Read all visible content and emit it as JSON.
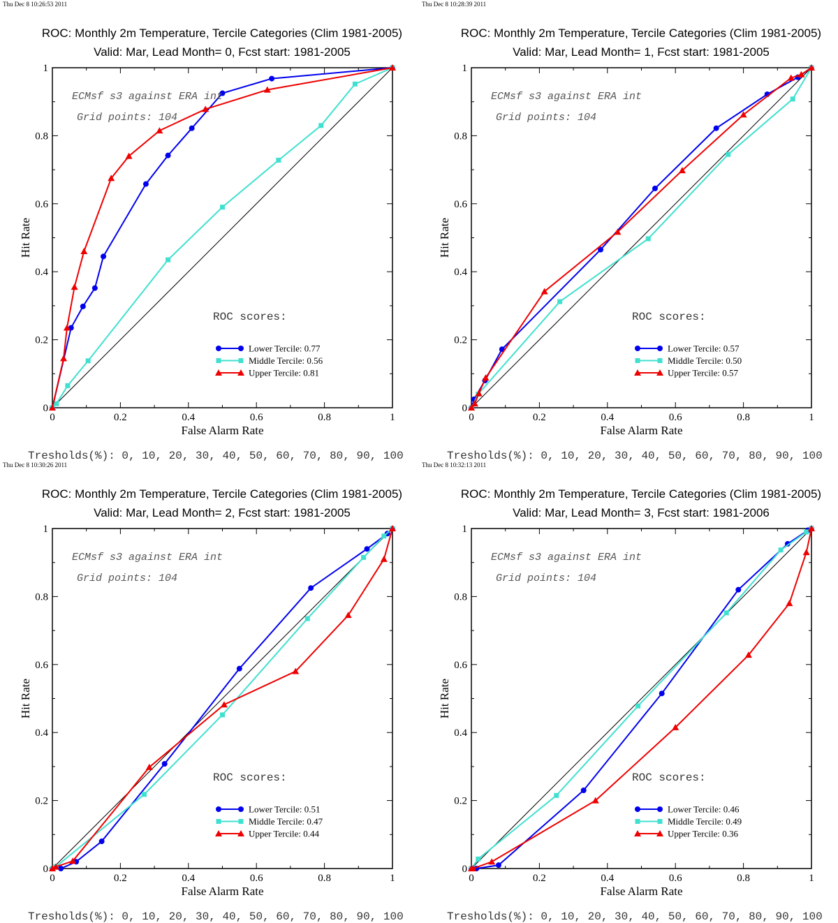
{
  "colors": {
    "lower": "#0000ee",
    "middle": "#40e0d0",
    "upper": "#ee0000",
    "diagonal": "#000000",
    "background": "#ffffff"
  },
  "chart_data": [
    {
      "type": "line",
      "timestamp": "Thu Dec  8 10:26:53 2011",
      "title": "ROC: Monthly 2m Temperature, Tercile Categories (Clim 1981-2005)",
      "subtitle": "Valid: Mar, Lead Month= 0, Fcst start: 1981-2005",
      "xlabel": "False Alarm Rate",
      "ylabel": "Hit Rate",
      "xlim": [
        0,
        1
      ],
      "ylim": [
        0,
        1
      ],
      "x_ticks": [
        "0",
        "0.2",
        "0.4",
        "0.6",
        "0.8",
        "1"
      ],
      "y_ticks": [
        "0",
        "0.2",
        "0.4",
        "0.6",
        "0.8",
        "1"
      ],
      "annotation_line1": "ECMsf s3 against ERA int",
      "annotation_line2": "Grid points:  104",
      "scores_heading": "ROC scores:",
      "thresholds_text": "Tresholds(%): 0, 10, 20, 30, 40, 50, 60, 70, 80, 90, 100",
      "legend_position": "lower-right",
      "series": [
        {
          "name": "Lower Tercile: 0.77",
          "marker": "circle",
          "x": [
            0,
            0.055,
            0.09,
            0.125,
            0.15,
            0.275,
            0.34,
            0.41,
            0.5,
            0.645,
            1
          ],
          "y": [
            0,
            0.235,
            0.298,
            0.352,
            0.445,
            0.658,
            0.742,
            0.822,
            0.925,
            0.968,
            1
          ]
        },
        {
          "name": "Middle Tercile: 0.56",
          "marker": "square",
          "x": [
            0,
            0.012,
            0.045,
            0.105,
            0.34,
            0.5,
            0.665,
            0.79,
            0.89,
            1
          ],
          "y": [
            0,
            0.012,
            0.065,
            0.138,
            0.435,
            0.59,
            0.728,
            0.83,
            0.952,
            1
          ]
        },
        {
          "name": "Upper Tercile: 0.81",
          "marker": "triangle",
          "x": [
            0,
            0.033,
            0.043,
            0.065,
            0.093,
            0.173,
            0.225,
            0.315,
            0.45,
            0.632,
            1
          ],
          "y": [
            0,
            0.145,
            0.235,
            0.355,
            0.46,
            0.675,
            0.74,
            0.815,
            0.878,
            0.935,
            1
          ]
        }
      ]
    },
    {
      "type": "line",
      "timestamp": "Thu Dec  8 10:28:39 2011",
      "title": "ROC: Monthly 2m Temperature, Tercile Categories (Clim 1981-2005)",
      "subtitle": "Valid: Mar, Lead Month= 1, Fcst start: 1981-2005",
      "xlabel": "False Alarm Rate",
      "ylabel": "Hit Rate",
      "xlim": [
        0,
        1
      ],
      "ylim": [
        0,
        1
      ],
      "x_ticks": [
        "0",
        "0.2",
        "0.4",
        "0.6",
        "0.8",
        "1"
      ],
      "y_ticks": [
        "0",
        "0.2",
        "0.4",
        "0.6",
        "0.8",
        "1"
      ],
      "annotation_line1": "ECMsf s3 against ERA int",
      "annotation_line2": "Grid points:  104",
      "scores_heading": "ROC scores:",
      "thresholds_text": "Tresholds(%): 0, 10, 20, 30, 40, 50, 60, 70, 80, 90, 100",
      "legend_position": "lower-right",
      "series": [
        {
          "name": "Lower Tercile: 0.57",
          "marker": "circle",
          "x": [
            0,
            0.008,
            0.04,
            0.09,
            0.38,
            0.54,
            0.72,
            0.87,
            0.96,
            1
          ],
          "y": [
            0,
            0.025,
            0.08,
            0.172,
            0.465,
            0.645,
            0.822,
            0.922,
            0.972,
            1
          ]
        },
        {
          "name": "Middle Tercile: 0.50",
          "marker": "square",
          "x": [
            0,
            0.02,
            0.26,
            0.52,
            0.755,
            0.945,
            1
          ],
          "y": [
            0,
            0.04,
            0.312,
            0.497,
            0.745,
            0.908,
            1
          ]
        },
        {
          "name": "Upper Tercile: 0.57",
          "marker": "triangle",
          "x": [
            0,
            0.01,
            0.022,
            0.042,
            0.215,
            0.43,
            0.62,
            0.8,
            0.94,
            0.97,
            1
          ],
          "y": [
            0,
            0.012,
            0.042,
            0.088,
            0.342,
            0.517,
            0.698,
            0.862,
            0.97,
            0.98,
            1
          ]
        }
      ]
    },
    {
      "type": "line",
      "timestamp": "Thu Dec  8 10:30:26 2011",
      "title": "ROC: Monthly 2m Temperature, Tercile Categories (Clim 1981-2005)",
      "subtitle": "Valid: Mar, Lead Month= 2, Fcst start: 1981-2005",
      "xlabel": "False Alarm Rate",
      "ylabel": "Hit Rate",
      "xlim": [
        0,
        1
      ],
      "ylim": [
        0,
        1
      ],
      "x_ticks": [
        "0",
        "0.2",
        "0.4",
        "0.6",
        "0.8",
        "1"
      ],
      "y_ticks": [
        "0",
        "0.2",
        "0.4",
        "0.6",
        "0.8",
        "1"
      ],
      "annotation_line1": "ECMsf s3 against ERA int",
      "annotation_line2": "Grid points:  104",
      "scores_heading": "ROC scores:",
      "thresholds_text": "Tresholds(%): 0, 10, 20, 30, 40, 50, 60, 70, 80, 90, 100",
      "legend_position": "lower-right",
      "series": [
        {
          "name": "Lower Tercile: 0.51",
          "marker": "circle",
          "x": [
            0,
            0.025,
            0.07,
            0.145,
            0.33,
            0.55,
            0.76,
            0.925,
            0.985,
            1
          ],
          "y": [
            0,
            0.0,
            0.02,
            0.08,
            0.308,
            0.588,
            0.825,
            0.94,
            0.985,
            1
          ]
        },
        {
          "name": "Middle Tercile: 0.47",
          "marker": "square",
          "x": [
            0,
            0.01,
            0.27,
            0.5,
            0.75,
            0.915,
            0.975,
            1
          ],
          "y": [
            0,
            0.005,
            0.218,
            0.452,
            0.735,
            0.915,
            0.978,
            1
          ]
        },
        {
          "name": "Upper Tercile: 0.44",
          "marker": "triangle",
          "x": [
            0,
            0.01,
            0.06,
            0.285,
            0.505,
            0.715,
            0.87,
            0.975,
            1
          ],
          "y": [
            0,
            0.005,
            0.022,
            0.298,
            0.482,
            0.58,
            0.745,
            0.91,
            1
          ]
        }
      ]
    },
    {
      "type": "line",
      "timestamp": "Thu Dec  8 10:32:13 2011",
      "title": "ROC: Monthly 2m Temperature, Tercile Categories (Clim 1981-2005)",
      "subtitle": "Valid: Mar, Lead Month= 3, Fcst start: 1981-2006",
      "xlabel": "False Alarm Rate",
      "ylabel": "Hit Rate",
      "xlim": [
        0,
        1
      ],
      "ylim": [
        0,
        1
      ],
      "x_ticks": [
        "0",
        "0.2",
        "0.4",
        "0.6",
        "0.8",
        "1"
      ],
      "y_ticks": [
        "0",
        "0.2",
        "0.4",
        "0.6",
        "0.8",
        "1"
      ],
      "annotation_line1": "ECMsf s3 against ERA int",
      "annotation_line2": "Grid points:  104",
      "scores_heading": "ROC scores:",
      "thresholds_text": "Tresholds(%): 0, 10, 20, 30, 40, 50, 60, 70, 80, 90, 100",
      "legend_position": "lower-right",
      "series": [
        {
          "name": "Lower Tercile: 0.46",
          "marker": "circle",
          "x": [
            0,
            0.015,
            0.08,
            0.33,
            0.56,
            0.785,
            0.93,
            0.99,
            1
          ],
          "y": [
            0,
            0.0,
            0.01,
            0.23,
            0.515,
            0.82,
            0.955,
            0.995,
            1
          ]
        },
        {
          "name": "Middle Tercile: 0.49",
          "marker": "square",
          "x": [
            0,
            0.02,
            0.25,
            0.49,
            0.75,
            0.91,
            0.985,
            1
          ],
          "y": [
            0,
            0.028,
            0.215,
            0.478,
            0.752,
            0.937,
            0.99,
            1
          ]
        },
        {
          "name": "Upper Tercile: 0.36",
          "marker": "triangle",
          "x": [
            0,
            0.005,
            0.06,
            0.365,
            0.6,
            0.815,
            0.935,
            0.985,
            1
          ],
          "y": [
            0,
            0.0,
            0.02,
            0.2,
            0.415,
            0.628,
            0.78,
            0.93,
            1
          ]
        }
      ]
    }
  ]
}
